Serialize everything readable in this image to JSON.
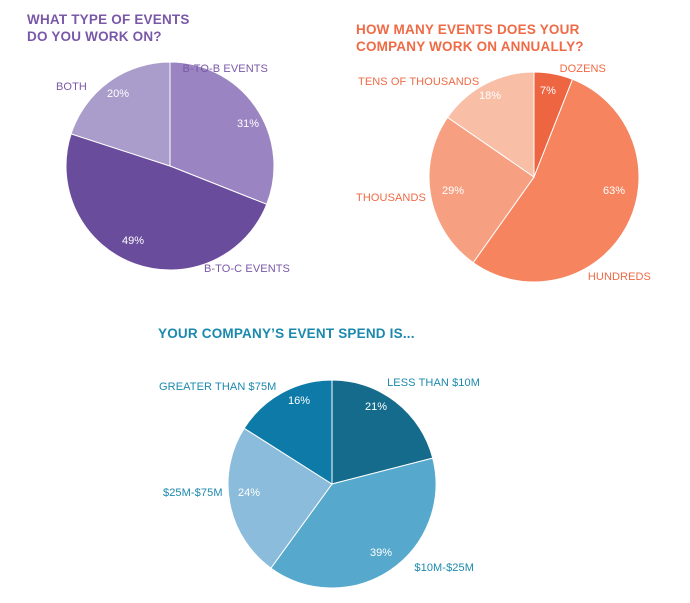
{
  "chart_data": [
    {
      "type": "pie",
      "title_lines": [
        "WHAT TYPE OF EVENTS",
        "DO YOU WORK ON?"
      ],
      "labels": [
        "B-TO-B EVENTS",
        "B-TO-C EVENTS",
        "BOTH"
      ],
      "values": [
        31,
        49,
        20
      ],
      "value_labels": [
        "31%",
        "49%",
        "20%"
      ],
      "colors": [
        "#9a85c2",
        "#6a4c9c",
        "#aa9ccb"
      ],
      "title_color": "#7a58a8",
      "label_color": "#7a58a8"
    },
    {
      "type": "pie",
      "title_lines": [
        "HOW MANY EVENTS DOES YOUR",
        "COMPANY WORK ON ANNUALLY?"
      ],
      "labels": [
        "DOZENS",
        "HUNDREDS",
        "THOUSANDS",
        "TENS OF THOUSANDS"
      ],
      "values": [
        7,
        63,
        29,
        18
      ],
      "value_labels": [
        "7%",
        "63%",
        "29%",
        "18%"
      ],
      "colors": [
        "#ee6542",
        "#f5845f",
        "#f6a081",
        "#f9bea6"
      ],
      "title_color": "#ef6a45",
      "label_color": "#ef6a45"
    },
    {
      "type": "pie",
      "title_lines": [
        "YOUR COMPANY’S EVENT SPEND IS..."
      ],
      "labels": [
        "LESS THAN $10M",
        "$10M-$25M",
        "$25M-$75M",
        "GREATER THAN $75M"
      ],
      "values": [
        21,
        39,
        24,
        16
      ],
      "value_labels": [
        "21%",
        "39%",
        "24%",
        "16%"
      ],
      "colors": [
        "#156b8b",
        "#56a8cc",
        "#8cbcdb",
        "#0d7aa8"
      ],
      "title_color": "#1b89ad",
      "label_color": "#1b89ad"
    }
  ]
}
